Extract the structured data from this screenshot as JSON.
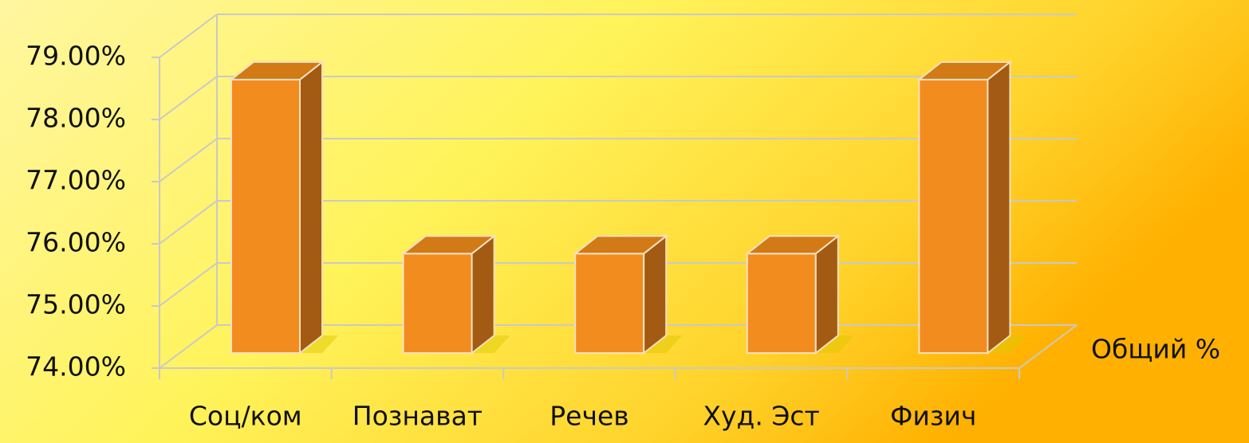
{
  "chart_data": {
    "type": "bar3d",
    "categories": [
      "Соц/ком",
      "Познават",
      "Речев",
      "Худ. Эст",
      "Физич"
    ],
    "series": [
      {
        "name": "Общий %",
        "color": "#f28c1e",
        "values": [
          78.4,
          75.6,
          75.6,
          75.6,
          78.4
        ]
      }
    ],
    "ylim": [
      74,
      79
    ],
    "yticks": [
      {
        "value": 74,
        "label": "74.00%"
      },
      {
        "value": 75,
        "label": "75.00%"
      },
      {
        "value": 76,
        "label": "76.00%"
      },
      {
        "value": 77,
        "label": "77.00%"
      },
      {
        "value": 78,
        "label": "78.00%"
      },
      {
        "value": 79,
        "label": "79.00%"
      }
    ],
    "grid": true
  }
}
